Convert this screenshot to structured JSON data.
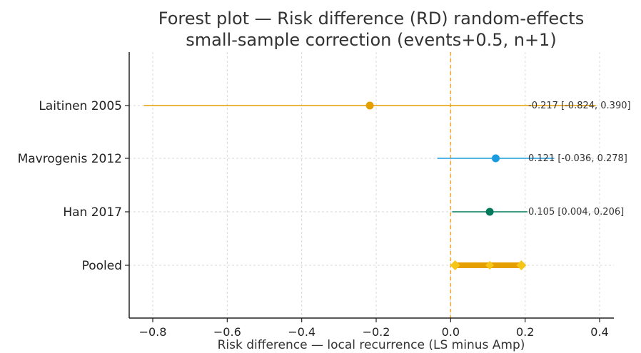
{
  "chart_data": {
    "type": "forest",
    "title_lines": [
      "Forest plot — Risk difference (RD) random-effects",
      "small-sample correction (events+0.5, n+1)"
    ],
    "xlabel": "Risk difference — local recurrence (LS minus Amp)",
    "xlim": [
      -0.87,
      0.43
    ],
    "xticks": [
      -0.8,
      -0.6,
      -0.4,
      -0.2,
      0.0,
      0.2,
      0.4
    ],
    "xtick_labels": [
      "−0.8",
      "−0.6",
      "−0.4",
      "−0.2",
      "0.0",
      "0.2",
      "0.4"
    ],
    "reference_line_x": 0.0,
    "reference_line_color": "#f5a623",
    "grid": true,
    "studies": [
      {
        "name": "Laitinen 2005",
        "rd": -0.217,
        "lo": -0.824,
        "hi": 0.39,
        "label": "-0.217 [-0.824, 0.390]",
        "color": "#e69f00"
      },
      {
        "name": "Mavrogenis 2012",
        "rd": 0.121,
        "lo": -0.036,
        "hi": 0.278,
        "label": "0.121 [-0.036, 0.278]",
        "color": "#1a9be0"
      },
      {
        "name": "Han 2017",
        "rd": 0.105,
        "lo": 0.004,
        "hi": 0.206,
        "label": "0.105 [0.004, 0.206]",
        "color": "#007a5a"
      }
    ],
    "pooled": {
      "name": "Pooled",
      "rd": 0.105,
      "lo": 0.012,
      "hi": 0.19,
      "color": "#e69f00",
      "diamond_color": "#f5c518"
    }
  }
}
